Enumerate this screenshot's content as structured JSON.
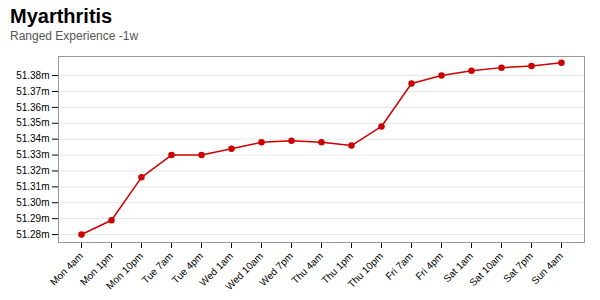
{
  "chart_data": {
    "type": "line",
    "title": "Myarthritis",
    "subtitle": "Ranged Experience -1w",
    "categories": [
      "Mon 4am",
      "Mon 1pm",
      "Mon 10pm",
      "Tue 7am",
      "Tue 4pm",
      "Wed 1am",
      "Wed 10am",
      "Wed 7pm",
      "Thu 4am",
      "Thu 1pm",
      "Thu 10pm",
      "Fri 7am",
      "Fri 4pm",
      "Sat 1am",
      "Sat 10am",
      "Sat 7pm",
      "Sun 4am"
    ],
    "values": [
      51.28,
      51.289,
      51.316,
      51.33,
      51.33,
      51.334,
      51.338,
      51.339,
      51.338,
      51.336,
      51.348,
      51.375,
      51.38,
      51.383,
      51.385,
      51.386,
      51.388
    ],
    "color": "#cc0000",
    "marker": "circle",
    "ylim": [
      51.275,
      51.392
    ],
    "yticks": [
      {
        "value": 51.28,
        "label": "51.28m"
      },
      {
        "value": 51.29,
        "label": "51.29m"
      },
      {
        "value": 51.3,
        "label": "51.30m"
      },
      {
        "value": 51.31,
        "label": "51.31m"
      },
      {
        "value": 51.32,
        "label": "51.32m"
      },
      {
        "value": 51.33,
        "label": "51.33m"
      },
      {
        "value": 51.34,
        "label": "51.34m"
      },
      {
        "value": 51.35,
        "label": "51.35m"
      },
      {
        "value": 51.36,
        "label": "51.36m"
      },
      {
        "value": 51.37,
        "label": "51.37m"
      },
      {
        "value": 51.38,
        "label": "51.38m"
      }
    ],
    "grid": true
  }
}
